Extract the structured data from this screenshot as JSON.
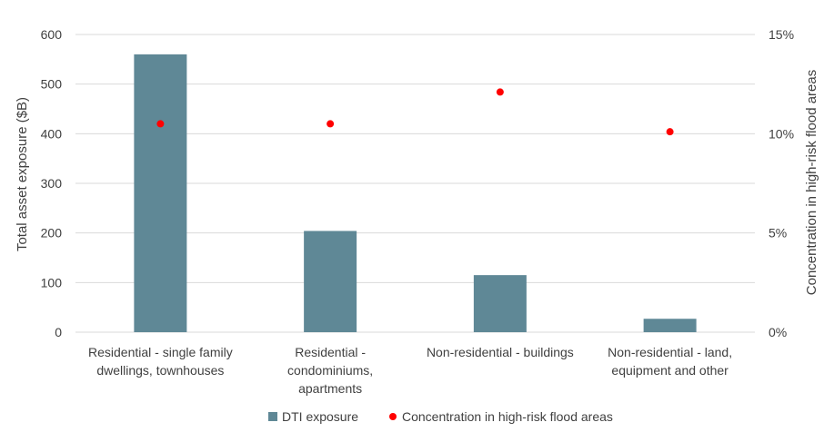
{
  "chart_data": {
    "type": "bar",
    "categories": [
      [
        "Residential - single family",
        "dwellings, townhouses"
      ],
      [
        "Residential -",
        "condominiums,",
        "apartments"
      ],
      [
        "Non-residential - buildings"
      ],
      [
        "Non-residential - land,",
        "equipment and other"
      ]
    ],
    "series": [
      {
        "name": "DTI exposure",
        "type": "bar",
        "axis": "left",
        "color": "#5f8896",
        "values": [
          560,
          204,
          115,
          27
        ]
      },
      {
        "name": "Concentration in high-risk flood areas",
        "type": "scatter",
        "axis": "right",
        "color": "#ff0000",
        "values": [
          10.5,
          10.5,
          12.1,
          10.1
        ]
      }
    ],
    "ylabel": "Total asset exposure ($B)",
    "y2label": "Concentration in high-risk flood areas",
    "ylim": [
      0,
      600
    ],
    "y2lim": [
      0,
      15
    ],
    "yticks": [
      "0",
      "100",
      "200",
      "300",
      "400",
      "500",
      "600"
    ],
    "y2ticks": [
      "0%",
      "5%",
      "10%",
      "15%"
    ],
    "grid": true,
    "legend_position": "bottom"
  }
}
